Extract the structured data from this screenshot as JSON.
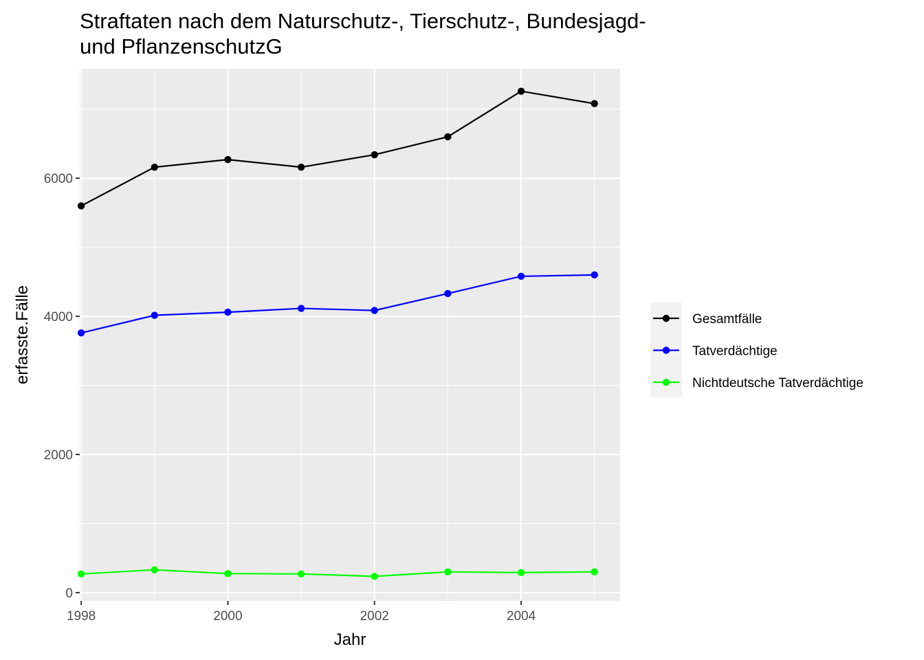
{
  "chart_data": {
    "type": "line",
    "title_lines": [
      "Straftaten nach dem Naturschutz-, Tierschutz-, Bundesjagd-",
      "und PflanzenschutzG"
    ],
    "xlabel": "Jahr",
    "ylabel": "erfasste.Fälle",
    "x": [
      1998,
      1999,
      2000,
      2001,
      2002,
      2003,
      2004,
      2005
    ],
    "x_ticks": [
      1998,
      2000,
      2002,
      2004
    ],
    "x_tick_labels": [
      "1998",
      "2000",
      "2002",
      "2004"
    ],
    "y_ticks": [
      0,
      2000,
      4000,
      6000
    ],
    "y_tick_labels": [
      "0",
      "2000",
      "4000",
      "6000"
    ],
    "xlim": [
      1997.98,
      2005.35
    ],
    "ylim": [
      -120,
      7585
    ],
    "grid": true,
    "legend_position": "right",
    "series": [
      {
        "name": "Gesamtfälle",
        "color": "#000000",
        "values": [
          5600,
          6160,
          6270,
          6160,
          6340,
          6600,
          7260,
          7080
        ]
      },
      {
        "name": "Tatverdächtige",
        "color": "#0000ff",
        "values": [
          3760,
          4015,
          4060,
          4115,
          4085,
          4330,
          4580,
          4600
        ]
      },
      {
        "name": "Nichtdeutsche Tatverdächtige",
        "color": "#00ff00",
        "values": [
          270,
          330,
          275,
          270,
          235,
          300,
          290,
          300
        ]
      }
    ]
  }
}
